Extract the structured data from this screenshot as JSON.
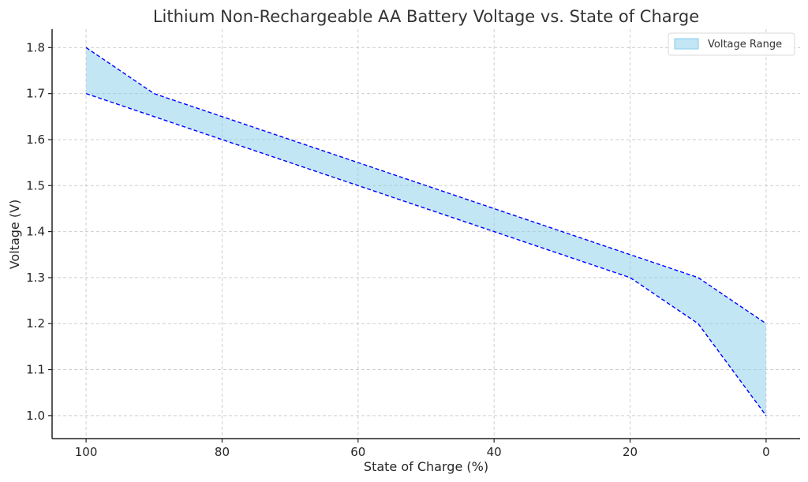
{
  "chart_data": {
    "type": "area",
    "title": "Lithium Non-Rechargeable AA Battery Voltage vs. State of Charge",
    "xlabel": "State of Charge (%)",
    "ylabel": "Voltage (V)",
    "x": [
      100,
      90,
      80,
      70,
      60,
      50,
      40,
      30,
      20,
      10,
      0
    ],
    "xlim": [
      105,
      -5
    ],
    "ylim": [
      0.95,
      1.84
    ],
    "x_ticks": [
      100,
      80,
      60,
      40,
      20,
      0
    ],
    "x_tick_labels": [
      "100",
      "80",
      "60",
      "40",
      "20",
      "0"
    ],
    "y_ticks": [
      1.0,
      1.1,
      1.2,
      1.3,
      1.4,
      1.5,
      1.6,
      1.7,
      1.8
    ],
    "y_tick_labels": [
      "1.0",
      "1.1",
      "1.2",
      "1.3",
      "1.4",
      "1.5",
      "1.6",
      "1.7",
      "1.8"
    ],
    "x_inverted": true,
    "grid": true,
    "legend_position": "top-right",
    "series": [
      {
        "name": "Voltage Range",
        "upper": [
          1.8,
          1.7,
          1.65,
          1.6,
          1.55,
          1.5,
          1.45,
          1.4,
          1.35,
          1.3,
          1.2
        ],
        "lower": [
          1.7,
          1.65,
          1.6,
          1.55,
          1.5,
          1.45,
          1.4,
          1.35,
          1.3,
          1.2,
          1.0
        ]
      }
    ],
    "colors": {
      "fill": "#87ceeb",
      "fill_opacity": 0.5,
      "boundary": "#0000ff"
    }
  }
}
